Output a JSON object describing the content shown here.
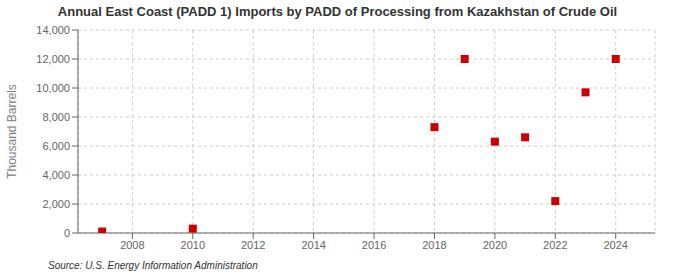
{
  "chart_data": {
    "type": "scatter",
    "title": "Annual East Coast (PADD 1) Imports by PADD of Processing from Kazakhstan of Crude Oil",
    "y_label": "Thousand Barrels",
    "annotations": [
      "Source: U.S. Energy Information Administration"
    ],
    "x": [
      2007,
      2010,
      2018,
      2019,
      2020,
      2021,
      2022,
      2023,
      2024
    ],
    "values": [
      100,
      300,
      7300,
      12000,
      6300,
      6600,
      2200,
      9700,
      12000
    ],
    "color": "#cc0000",
    "marker": "square",
    "xlim": [
      2006.2,
      2025.3
    ],
    "xticks": [
      2008,
      2010,
      2012,
      2014,
      2016,
      2018,
      2020,
      2022,
      2024
    ],
    "ylim": [
      0,
      14000
    ],
    "yticks": [
      0,
      {
        "value": 2000,
        "label": "2,000"
      },
      {
        "value": 4000,
        "label": "4,000"
      },
      {
        "value": 6000,
        "label": "6,000"
      },
      {
        "value": 8000,
        "label": "8,000"
      },
      {
        "value": 10000,
        "label": "10,000"
      },
      {
        "value": 12000,
        "label": "12,000"
      },
      {
        "value": 14000,
        "label": "14,000"
      }
    ],
    "grid": true
  }
}
